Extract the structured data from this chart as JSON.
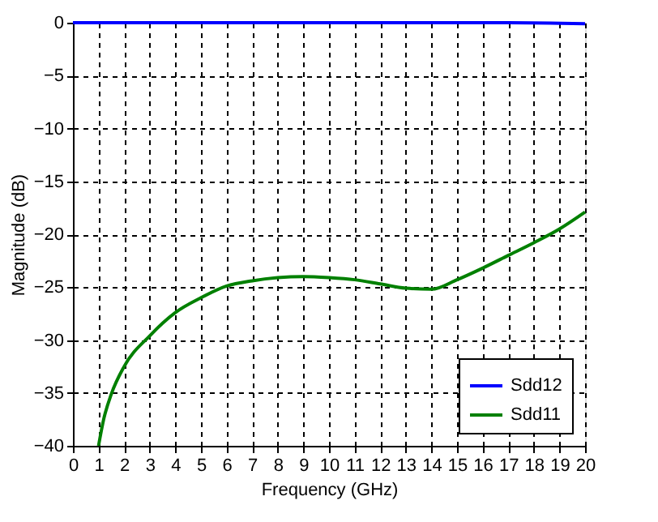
{
  "chart_data": {
    "type": "line",
    "xlabel": "Frequency (GHz)",
    "ylabel": "Magnitude (dB)",
    "xlim": [
      0,
      20
    ],
    "ylim": [
      -40,
      0
    ],
    "xticks": [
      0,
      1,
      2,
      3,
      4,
      5,
      6,
      7,
      8,
      9,
      10,
      11,
      12,
      13,
      14,
      15,
      16,
      17,
      18,
      19,
      20
    ],
    "yticks": [
      -40,
      -35,
      -30,
      -25,
      -20,
      -15,
      -10,
      -5,
      0
    ],
    "grid": true,
    "legend": "bottom right",
    "line_style": "solid",
    "marker": "none",
    "series": [
      {
        "name": "Sdd12",
        "color": "#0000ff",
        "x": [
          0,
          5,
          10,
          15,
          17,
          20
        ],
        "values": [
          0,
          0,
          0,
          0,
          0,
          -0.1
        ]
      },
      {
        "name": "Sdd11",
        "color": "#008000",
        "x": [
          1,
          1.2,
          1.5,
          2,
          3,
          4,
          5,
          6,
          7,
          8,
          9,
          10,
          11,
          12,
          13,
          14,
          15,
          16,
          17,
          18,
          19,
          20
        ],
        "values": [
          -40,
          -37.5,
          -35.1,
          -32.5,
          -29.6,
          -27.4,
          -26,
          -24.9,
          -24.4,
          -24.1,
          -24,
          -24.1,
          -24.3,
          -24.7,
          -25.1,
          -25.2,
          -24.3,
          -23.2,
          -22,
          -20.8,
          -19.5,
          -17.9
        ]
      }
    ]
  }
}
